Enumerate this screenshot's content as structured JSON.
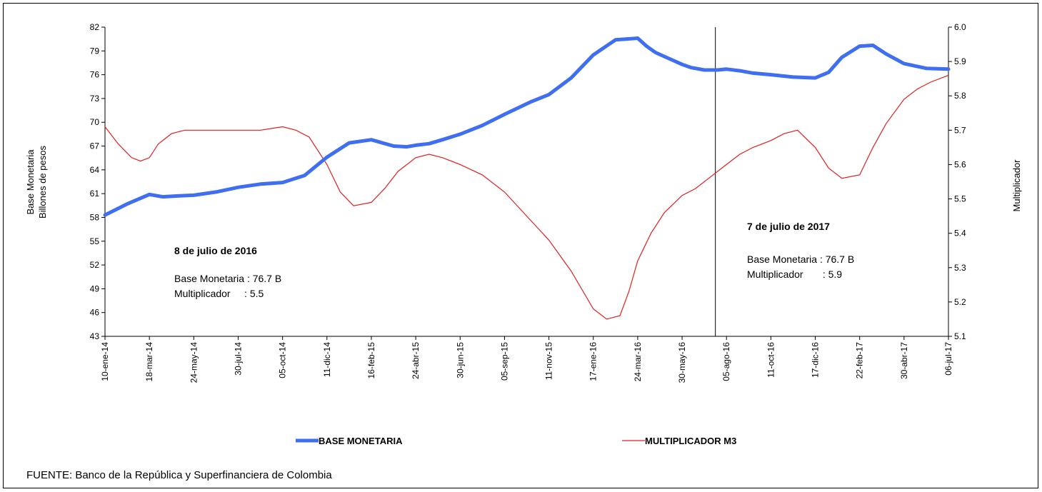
{
  "chart_data": {
    "type": "line",
    "y_left": {
      "label_lines": [
        "Base Monetaria",
        "Billones de pesos"
      ],
      "min": 43,
      "max": 82,
      "ticks": [
        "82",
        "79",
        "76",
        "73",
        "70",
        "67",
        "64",
        "61",
        "58",
        "55",
        "52",
        "49",
        "46",
        "43"
      ]
    },
    "y_right": {
      "label": "Multiplicador",
      "min": 5.1,
      "max": 6.0,
      "ticks": [
        "6.0",
        "5.9",
        "5.8",
        "5.7",
        "5.6",
        "5.5",
        "5.4",
        "5.3",
        "5.2",
        "5.1"
      ]
    },
    "x_tick_labels": [
      "10-ene-14",
      "18-mar-14",
      "24-may-14",
      "30-jul-14",
      "05-oct-14",
      "11-dic-14",
      "16-feb-15",
      "24-abr-15",
      "30-jun-15",
      "05-sep-15",
      "11-nov-15",
      "17-ene-16",
      "24-mar-16",
      "30-may-16",
      "05-ago-16",
      "11-oct-16",
      "17-dic-16",
      "22-feb-17",
      "30-abr-17",
      "06-jul-17"
    ],
    "series": [
      {
        "name": "BASE MONETARIA",
        "color": "#3f6ff0",
        "axis": "left",
        "x": [
          0,
          0.5,
          1,
          1.3,
          1.6,
          2,
          2.5,
          3,
          3.5,
          4,
          4.5,
          5,
          5.5,
          6,
          6.5,
          6.8,
          7,
          7.3,
          7.6,
          8,
          8.5,
          9,
          9.3,
          9.6,
          10,
          10.5,
          11,
          11.5,
          12,
          12.2,
          12.4,
          12.6,
          12.8,
          13,
          13.2,
          13.5,
          13.8,
          14,
          14.3,
          14.6,
          15,
          15.5,
          16,
          16.3,
          16.6,
          17,
          17.3,
          17.6,
          18,
          18.5,
          19
        ],
        "values": [
          58.3,
          59.7,
          60.9,
          60.6,
          60.7,
          60.8,
          61.2,
          61.8,
          62.2,
          62.4,
          63.3,
          65.6,
          67.4,
          67.8,
          67.0,
          66.9,
          67.1,
          67.3,
          67.8,
          68.5,
          69.6,
          71.0,
          71.8,
          72.6,
          73.5,
          75.6,
          78.5,
          80.4,
          80.6,
          79.6,
          78.8,
          78.3,
          77.8,
          77.3,
          76.9,
          76.6,
          76.6,
          76.7,
          76.5,
          76.2,
          76.0,
          75.7,
          75.6,
          76.3,
          78.2,
          79.6,
          79.7,
          78.6,
          77.4,
          76.8,
          76.7
        ]
      },
      {
        "name": "MULTIPLICADOR M3",
        "color": "#e02020",
        "axis": "right",
        "x": [
          0,
          0.3,
          0.6,
          0.8,
          1,
          1.2,
          1.5,
          1.8,
          2,
          2.5,
          3,
          3.5,
          4,
          4.3,
          4.6,
          5,
          5.3,
          5.6,
          6,
          6.3,
          6.6,
          7,
          7.3,
          7.6,
          8,
          8.5,
          9,
          9.5,
          10,
          10.5,
          11,
          11.3,
          11.6,
          11.8,
          12,
          12.3,
          12.6,
          13,
          13.3,
          13.6,
          14,
          14.3,
          14.6,
          15,
          15.3,
          15.6,
          16,
          16.3,
          16.6,
          17,
          17.3,
          17.6,
          18,
          18.3,
          18.6,
          19
        ],
        "values": [
          5.71,
          5.66,
          5.62,
          5.61,
          5.62,
          5.66,
          5.69,
          5.7,
          5.7,
          5.7,
          5.7,
          5.7,
          5.71,
          5.7,
          5.68,
          5.6,
          5.52,
          5.48,
          5.49,
          5.53,
          5.58,
          5.62,
          5.63,
          5.62,
          5.6,
          5.57,
          5.52,
          5.45,
          5.38,
          5.29,
          5.18,
          5.15,
          5.16,
          5.23,
          5.32,
          5.4,
          5.46,
          5.51,
          5.53,
          5.56,
          5.6,
          5.63,
          5.65,
          5.67,
          5.69,
          5.7,
          5.65,
          5.59,
          5.56,
          5.57,
          5.65,
          5.72,
          5.79,
          5.82,
          5.84,
          5.86
        ]
      }
    ],
    "vertical_marker_x": 13.75,
    "annotations": [
      {
        "title": "8 de julio de 2016",
        "lines": [
          "Base Monetaria : 76.7 B",
          "Multiplicador     : 5.5"
        ]
      },
      {
        "title": "7 de julio de 2017",
        "lines": [
          "Base Monetaria : 76.7 B",
          "Multiplicador       : 5.9"
        ]
      }
    ],
    "legend": [
      {
        "label": "BASE MONETARIA",
        "color": "#3f6ff0"
      },
      {
        "label": "MULTIPLICADOR M3",
        "color": "#e02020"
      }
    ],
    "grid": false
  },
  "source_note": "FUENTE: Banco de la República y Superfinanciera de Colombia"
}
